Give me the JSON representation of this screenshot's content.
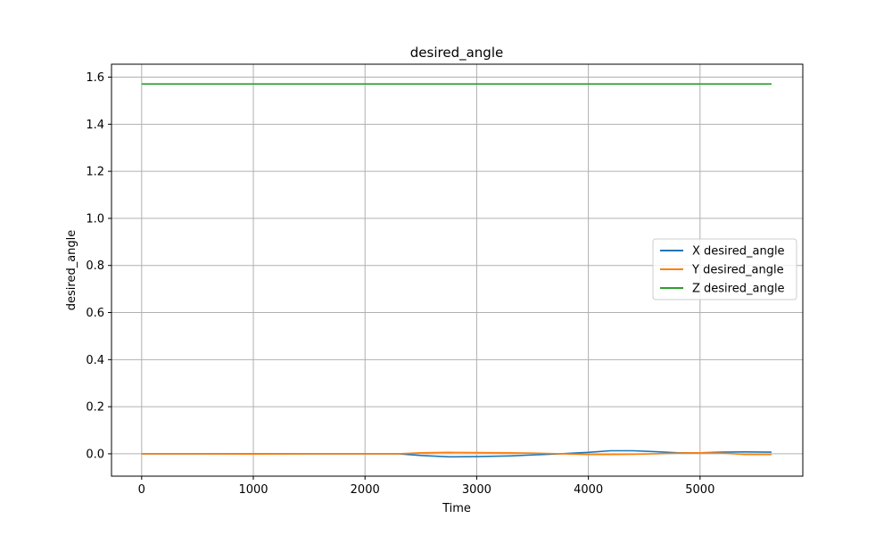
{
  "chart_data": {
    "type": "line",
    "title": "desired_angle",
    "xlabel": "Time",
    "ylabel": "desired_angle",
    "xlim": [
      -270,
      5920
    ],
    "ylim": [
      -0.095,
      1.655
    ],
    "xticks": [
      0,
      1000,
      2000,
      3000,
      4000,
      5000
    ],
    "xtick_labels": [
      "0",
      "1000",
      "2000",
      "3000",
      "4000",
      "5000"
    ],
    "yticks": [
      0.0,
      0.2,
      0.4,
      0.6,
      0.8,
      1.0,
      1.2,
      1.4,
      1.6
    ],
    "ytick_labels": [
      "0.0",
      "0.2",
      "0.4",
      "0.6",
      "0.8",
      "1.0",
      "1.2",
      "1.4",
      "1.6"
    ],
    "grid": true,
    "legend_position": "center-right",
    "series": [
      {
        "name": "X desired_angle",
        "color": "#1f77b4",
        "x": [
          0,
          500,
          1000,
          1500,
          2000,
          2300,
          2500,
          2750,
          3000,
          3300,
          3500,
          3750,
          4000,
          4200,
          4400,
          4600,
          4800,
          5000,
          5200,
          5400,
          5640
        ],
        "y": [
          0.0,
          0.0,
          0.0,
          0.0,
          0.0,
          0.0,
          -0.007,
          -0.013,
          -0.012,
          -0.009,
          -0.005,
          0.0,
          0.006,
          0.013,
          0.013,
          0.009,
          0.004,
          0.004,
          0.007,
          0.008,
          0.007
        ]
      },
      {
        "name": "Y desired_angle",
        "color": "#ff7f0e",
        "x": [
          0,
          500,
          1000,
          1500,
          2000,
          2300,
          2500,
          2750,
          3000,
          3300,
          3500,
          3750,
          4000,
          4200,
          4400,
          4600,
          4800,
          5000,
          5200,
          5400,
          5640
        ],
        "y": [
          0.0,
          0.0,
          -0.001,
          0.0,
          0.0,
          0.0,
          0.004,
          0.006,
          0.005,
          0.004,
          0.003,
          0.0,
          -0.003,
          -0.003,
          -0.002,
          0.0,
          0.003,
          0.004,
          0.003,
          -0.003,
          -0.003
        ]
      },
      {
        "name": "Z desired_angle",
        "color": "#2ca02c",
        "x": [
          0,
          5640
        ],
        "y": [
          1.5708,
          1.5708
        ]
      }
    ]
  }
}
